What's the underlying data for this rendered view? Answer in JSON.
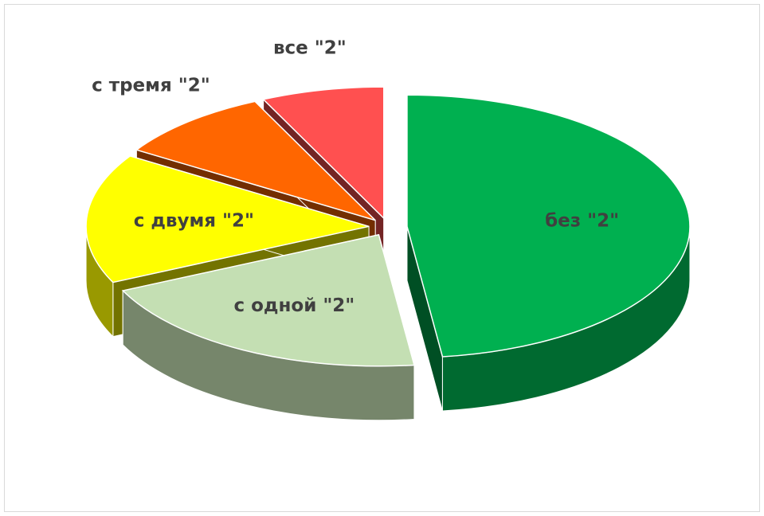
{
  "chart_data": {
    "type": "pie",
    "categories": [
      "без \"2\"",
      "с одной \"2\"",
      "с двумя \"2\"",
      "с тремя \"2\"",
      "все \"2\""
    ],
    "values": [
      48,
      20,
      16,
      9,
      7
    ],
    "colors": [
      "#00b050",
      "#c4dfb3",
      "#ffff00",
      "#ff6600",
      "#ff5050"
    ]
  }
}
